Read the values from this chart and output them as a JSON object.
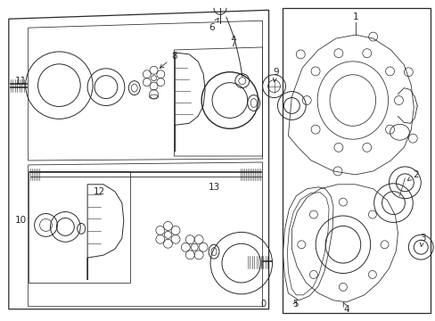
{
  "bg_color": "#ffffff",
  "line_color": "#2a2a2a",
  "fig_width": 4.89,
  "fig_height": 3.6,
  "dpi": 100,
  "label_fontsize": 7.5,
  "part_lw": 0.7,
  "border_lw": 0.9
}
